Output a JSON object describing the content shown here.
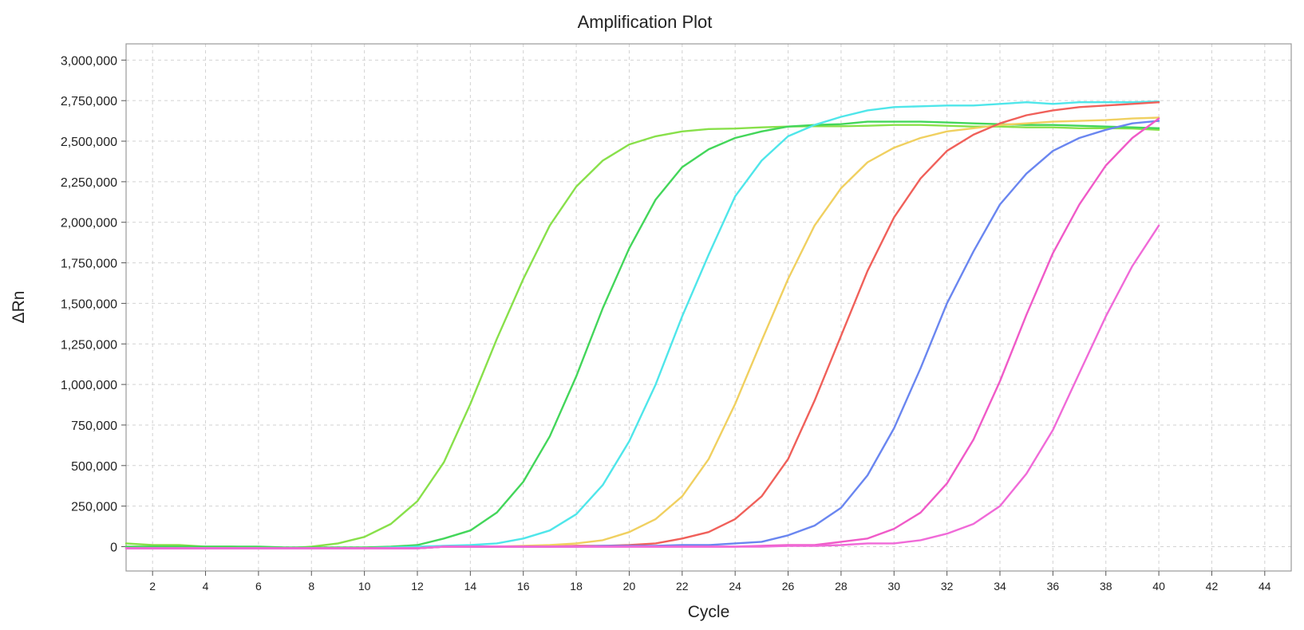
{
  "chart_data": {
    "type": "line",
    "title": "Amplification Plot",
    "xlabel": "Cycle",
    "ylabel": "ΔRn",
    "xlim": [
      1,
      45
    ],
    "ylim": [
      -150000,
      3100000
    ],
    "grid": true,
    "legend": "none",
    "x_ticks": [
      2,
      4,
      6,
      8,
      10,
      12,
      14,
      16,
      18,
      20,
      22,
      24,
      26,
      28,
      30,
      32,
      34,
      36,
      38,
      40,
      42,
      44
    ],
    "x_tick_labels": [
      "2",
      "4",
      "6",
      "8",
      "10",
      "12",
      "14",
      "16",
      "18",
      "20",
      "22",
      "24",
      "26",
      "28",
      "30",
      "32",
      "34",
      "36",
      "38",
      "40",
      "42",
      "44"
    ],
    "y_ticks": [
      0,
      250000,
      500000,
      750000,
      1000000,
      1250000,
      1500000,
      1750000,
      2000000,
      2250000,
      2500000,
      2750000,
      3000000
    ],
    "y_tick_labels": [
      "0",
      "250,000",
      "500,000",
      "750,000",
      "1,000,000",
      "1,250,000",
      "1,500,000",
      "1,750,000",
      "2,000,000",
      "2,250,000",
      "2,500,000",
      "2,750,000",
      "3,000,000"
    ],
    "series": [
      {
        "name": "light-green",
        "color": "#88e04a",
        "x": [
          1,
          2,
          3,
          4,
          5,
          6,
          7,
          8,
          9,
          10,
          11,
          12,
          13,
          14,
          15,
          16,
          17,
          18,
          19,
          20,
          21,
          22,
          23,
          24,
          25,
          26,
          27,
          28,
          29,
          30,
          31,
          32,
          33,
          34,
          35,
          36,
          37,
          38,
          39,
          40
        ],
        "values": [
          20000,
          10000,
          10000,
          0,
          0,
          -5000,
          -10000,
          0,
          20000,
          60000,
          140000,
          280000,
          520000,
          880000,
          1280000,
          1650000,
          1980000,
          2220000,
          2380000,
          2480000,
          2530000,
          2560000,
          2575000,
          2578000,
          2585000,
          2590000,
          2592000,
          2592000,
          2595000,
          2600000,
          2600000,
          2595000,
          2590000,
          2590000,
          2585000,
          2585000,
          2580000,
          2580000,
          2578000,
          2570000
        ]
      },
      {
        "name": "green",
        "color": "#43d65a",
        "x": [
          1,
          2,
          3,
          4,
          5,
          6,
          7,
          8,
          9,
          10,
          11,
          12,
          13,
          14,
          15,
          16,
          17,
          18,
          19,
          20,
          21,
          22,
          23,
          24,
          25,
          26,
          27,
          28,
          29,
          30,
          31,
          32,
          33,
          34,
          35,
          36,
          37,
          38,
          39,
          40
        ],
        "values": [
          0,
          0,
          0,
          0,
          0,
          0,
          -5000,
          -5000,
          -5000,
          -5000,
          0,
          10000,
          50000,
          100000,
          210000,
          400000,
          680000,
          1050000,
          1470000,
          1840000,
          2140000,
          2340000,
          2450000,
          2520000,
          2560000,
          2590000,
          2600000,
          2605000,
          2620000,
          2620000,
          2620000,
          2615000,
          2610000,
          2605000,
          2600000,
          2600000,
          2595000,
          2590000,
          2585000,
          2580000
        ]
      },
      {
        "name": "cyan",
        "color": "#4fe6ea",
        "x": [
          1,
          2,
          3,
          4,
          5,
          6,
          7,
          8,
          9,
          10,
          11,
          12,
          13,
          14,
          15,
          16,
          17,
          18,
          19,
          20,
          21,
          22,
          23,
          24,
          25,
          26,
          27,
          28,
          29,
          30,
          31,
          32,
          33,
          34,
          35,
          36,
          37,
          38,
          39,
          40
        ],
        "values": [
          -10000,
          -10000,
          -10000,
          -10000,
          -10000,
          -10000,
          -10000,
          -10000,
          -10000,
          -10000,
          -5000,
          0,
          5000,
          10000,
          20000,
          50000,
          100000,
          200000,
          380000,
          650000,
          1000000,
          1420000,
          1800000,
          2160000,
          2380000,
          2530000,
          2600000,
          2650000,
          2690000,
          2710000,
          2715000,
          2720000,
          2720000,
          2730000,
          2740000,
          2730000,
          2740000,
          2740000,
          2740000,
          2745000
        ]
      },
      {
        "name": "yellow",
        "color": "#f0d060",
        "x": [
          1,
          2,
          3,
          4,
          5,
          6,
          7,
          8,
          9,
          10,
          11,
          12,
          13,
          14,
          15,
          16,
          17,
          18,
          19,
          20,
          21,
          22,
          23,
          24,
          25,
          26,
          27,
          28,
          29,
          30,
          31,
          32,
          33,
          34,
          35,
          36,
          37,
          38,
          39,
          40
        ],
        "values": [
          -10000,
          -10000,
          -10000,
          -10000,
          -10000,
          -10000,
          -10000,
          -10000,
          -10000,
          -10000,
          -10000,
          -10000,
          0,
          0,
          0,
          5000,
          10000,
          20000,
          40000,
          90000,
          170000,
          310000,
          540000,
          880000,
          1270000,
          1650000,
          1980000,
          2210000,
          2370000,
          2460000,
          2520000,
          2560000,
          2580000,
          2600000,
          2610000,
          2620000,
          2625000,
          2630000,
          2640000,
          2645000
        ]
      },
      {
        "name": "red",
        "color": "#f0605a",
        "x": [
          1,
          2,
          3,
          4,
          5,
          6,
          7,
          8,
          9,
          10,
          11,
          12,
          13,
          14,
          15,
          16,
          17,
          18,
          19,
          20,
          21,
          22,
          23,
          24,
          25,
          26,
          27,
          28,
          29,
          30,
          31,
          32,
          33,
          34,
          35,
          36,
          37,
          38,
          39,
          40
        ],
        "values": [
          -10000,
          -10000,
          -10000,
          -10000,
          -10000,
          -10000,
          -10000,
          -10000,
          -10000,
          -10000,
          -10000,
          -10000,
          0,
          0,
          0,
          0,
          0,
          5000,
          5000,
          10000,
          20000,
          50000,
          90000,
          170000,
          310000,
          540000,
          900000,
          1300000,
          1700000,
          2030000,
          2270000,
          2440000,
          2540000,
          2610000,
          2660000,
          2690000,
          2710000,
          2720000,
          2730000,
          2740000
        ]
      },
      {
        "name": "blue",
        "color": "#6a86f0",
        "x": [
          1,
          2,
          3,
          4,
          5,
          6,
          7,
          8,
          9,
          10,
          11,
          12,
          13,
          14,
          15,
          16,
          17,
          18,
          19,
          20,
          21,
          22,
          23,
          24,
          25,
          26,
          27,
          28,
          29,
          30,
          31,
          32,
          33,
          34,
          35,
          36,
          37,
          38,
          39,
          40
        ],
        "values": [
          -10000,
          -10000,
          -10000,
          -10000,
          -10000,
          -10000,
          -10000,
          -10000,
          -10000,
          -10000,
          -10000,
          -10000,
          0,
          0,
          0,
          0,
          0,
          0,
          5000,
          5000,
          5000,
          10000,
          10000,
          20000,
          30000,
          70000,
          130000,
          240000,
          440000,
          730000,
          1100000,
          1500000,
          1820000,
          2110000,
          2300000,
          2440000,
          2520000,
          2570000,
          2610000,
          2625000
        ]
      },
      {
        "name": "magenta",
        "color": "#f05ac8",
        "x": [
          1,
          2,
          3,
          4,
          5,
          6,
          7,
          8,
          9,
          10,
          11,
          12,
          13,
          14,
          15,
          16,
          17,
          18,
          19,
          20,
          21,
          22,
          23,
          24,
          25,
          26,
          27,
          28,
          29,
          30,
          31,
          32,
          33,
          34,
          35,
          36,
          37,
          38,
          39,
          40
        ],
        "values": [
          -10000,
          -10000,
          -10000,
          -10000,
          -10000,
          -10000,
          -10000,
          -10000,
          -10000,
          -10000,
          -10000,
          -10000,
          0,
          0,
          0,
          0,
          0,
          0,
          0,
          0,
          0,
          0,
          0,
          0,
          5000,
          10000,
          10000,
          30000,
          50000,
          110000,
          210000,
          390000,
          660000,
          1020000,
          1430000,
          1810000,
          2110000,
          2350000,
          2520000,
          2640000
        ]
      },
      {
        "name": "pink",
        "color": "#f06ad8",
        "x": [
          1,
          2,
          3,
          4,
          5,
          6,
          7,
          8,
          9,
          10,
          11,
          12,
          13,
          14,
          15,
          16,
          17,
          18,
          19,
          20,
          21,
          22,
          23,
          24,
          25,
          26,
          27,
          28,
          29,
          30,
          31,
          32,
          33,
          34,
          35,
          36,
          37,
          38,
          39,
          40
        ],
        "values": [
          -10000,
          -10000,
          -10000,
          -10000,
          -10000,
          -10000,
          -10000,
          -10000,
          -10000,
          -10000,
          -10000,
          -10000,
          0,
          0,
          0,
          0,
          0,
          0,
          0,
          0,
          0,
          0,
          0,
          0,
          0,
          5000,
          5000,
          10000,
          20000,
          20000,
          40000,
          80000,
          140000,
          250000,
          450000,
          720000,
          1070000,
          1420000,
          1730000,
          1980000
        ]
      }
    ]
  }
}
